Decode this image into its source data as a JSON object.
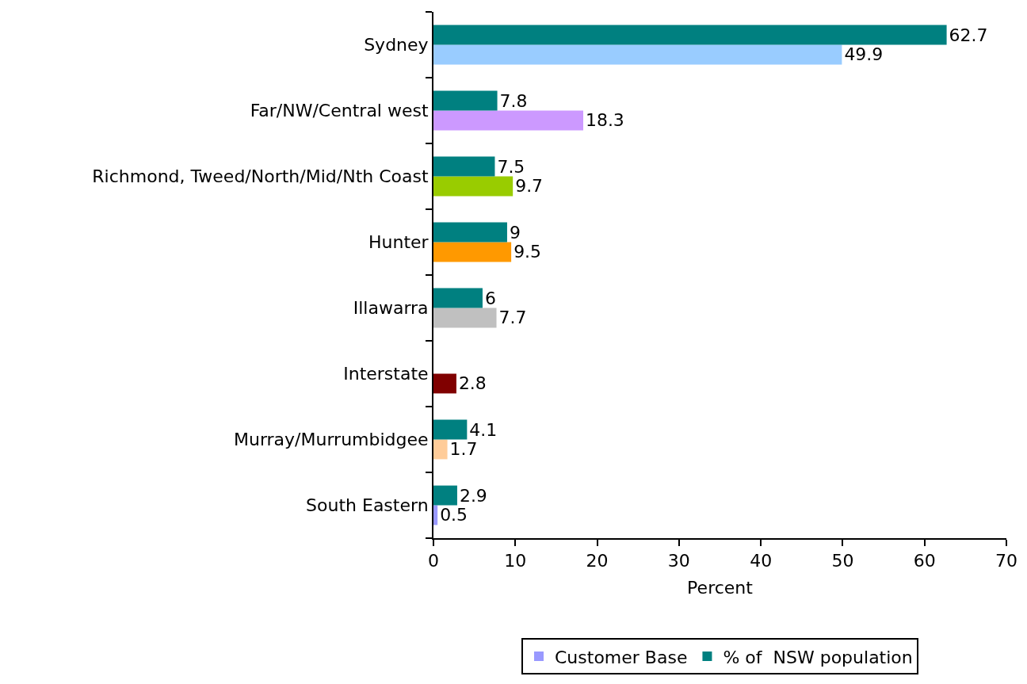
{
  "chart_data": {
    "type": "bar",
    "orientation": "horizontal",
    "xlabel": "Percent",
    "categories": [
      "Sydney",
      "Far/NW/Central west",
      "Richmond, Tweed/North/Mid/Nth Coast",
      "Hunter",
      "Illawarra",
      "Interstate",
      "Murray/Murrumbidgee",
      "South Eastern"
    ],
    "series": [
      {
        "name": "Customer Base",
        "color": "#9999ff",
        "colors": [
          "#99ccff",
          "#cc99ff",
          "#99cc00",
          "#ff9900",
          "#c0c0c0",
          "#800000",
          "#ffcc99",
          "#9999ff"
        ],
        "values": [
          49.9,
          18.3,
          9.7,
          9.5,
          7.7,
          2.8,
          1.7,
          0.5
        ]
      },
      {
        "name": "% of  NSW population",
        "color": "#008080",
        "values": [
          62.7,
          7.8,
          7.5,
          9,
          6,
          null,
          4.1,
          2.9
        ]
      }
    ],
    "xlim": [
      0,
      70
    ],
    "xticks": [
      0,
      10,
      20,
      30,
      40,
      50,
      60,
      70
    ],
    "legend": "bottom",
    "data_labels": true
  }
}
